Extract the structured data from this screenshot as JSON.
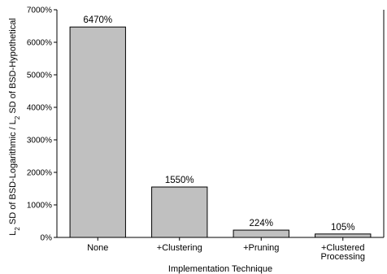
{
  "chart_data": {
    "type": "bar",
    "categories": [
      "None",
      "+Clustering",
      "+Pruning",
      "+Clustered Processing"
    ],
    "category_lines": [
      [
        "None"
      ],
      [
        "+Clustering"
      ],
      [
        "+Pruning"
      ],
      [
        "+Clustered",
        "Processing"
      ]
    ],
    "values": [
      6470,
      1550,
      224,
      105
    ],
    "data_labels": [
      "6470%",
      "1550%",
      "224%",
      "105%"
    ],
    "title": "",
    "xlabel": "Implementation Technique",
    "ylabel": {
      "parts": [
        {
          "text": "L"
        },
        {
          "text": "2",
          "sub": true
        },
        {
          "text": " SD of BSD-Logarithmic / L"
        },
        {
          "text": "2",
          "sub": true
        },
        {
          "text": " SD of BSD-Hypothetical"
        }
      ],
      "full": "L2 SD of BSD-Logarithmic / L2 SD of BSD-Hypothetical"
    },
    "ylim": [
      0,
      7000
    ],
    "yticks": [
      0,
      1000,
      2000,
      3000,
      4000,
      5000,
      6000,
      7000
    ],
    "ytick_labels": [
      "0%",
      "1000%",
      "2000%",
      "3000%",
      "4000%",
      "5000%",
      "6000%",
      "7000%"
    ],
    "grid": false,
    "legend": "none",
    "colors": {
      "bar_fill": "#c0c0c0",
      "bar_stroke": "#000000"
    }
  }
}
